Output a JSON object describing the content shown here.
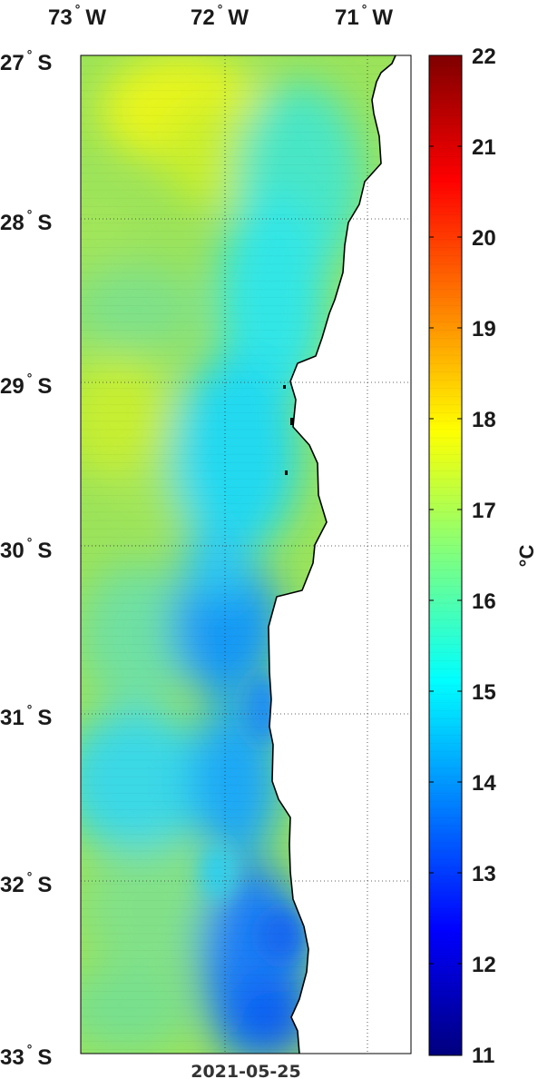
{
  "map": {
    "date": "2021-05-25",
    "lon_labels": [
      {
        "deg": "73",
        "hemi": "W",
        "lon": -73
      },
      {
        "deg": "72",
        "hemi": "W",
        "lon": -72
      },
      {
        "deg": "71",
        "hemi": "W",
        "lon": -71
      }
    ],
    "lat_labels": [
      {
        "deg": "27",
        "hemi": "S",
        "lat": -27
      },
      {
        "deg": "28",
        "hemi": "S",
        "lat": -28
      },
      {
        "deg": "29",
        "hemi": "S",
        "lat": -29
      },
      {
        "deg": "30",
        "hemi": "S",
        "lat": -30
      },
      {
        "deg": "31",
        "hemi": "S",
        "lat": -31
      },
      {
        "deg": "32",
        "hemi": "S",
        "lat": -32
      },
      {
        "deg": "33",
        "hemi": "S",
        "lat": -33
      }
    ],
    "extent": {
      "lon_min": -73,
      "lon_max": -70.7,
      "lat_min": -33,
      "lat_max": -26.9
    },
    "grid": "dotted",
    "land_color": "#ffffff",
    "coastline_color": "#000000"
  },
  "colorbar": {
    "unit": "°C",
    "ticks": [
      "22",
      "21",
      "20",
      "19",
      "18",
      "17",
      "16",
      "15",
      "14",
      "13",
      "12",
      "11"
    ],
    "min": 11,
    "max": 22,
    "colormap": "jet",
    "colors": [
      "#00007f",
      "#0000ff",
      "#007fff",
      "#00ffff",
      "#7fff7f",
      "#ffff00",
      "#ff7f00",
      "#ff0000",
      "#7f0000"
    ]
  }
}
